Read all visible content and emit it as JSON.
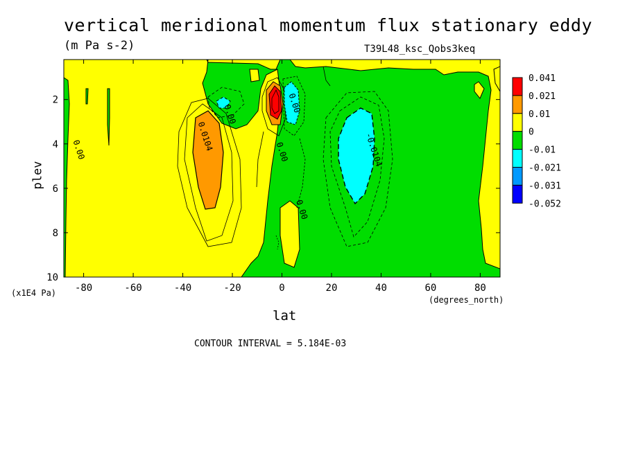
{
  "figure": {
    "title": "vertical meridional momentum flux stationary eddy",
    "subtitle": "(m Pa s-2)",
    "case_label": "T39L48_ksc_Qobs3keq",
    "y_unit_note": "(x1E4 Pa)",
    "x_unit_note": "(degrees_north)",
    "contour_interval": "CONTOUR INTERVAL = 5.184E-03"
  },
  "chart_data": {
    "type": "heatmap",
    "title": "vertical meridional momentum flux stationary eddy",
    "xlabel": "lat",
    "ylabel": "plev",
    "xlim": [
      -88,
      88
    ],
    "ylim": [
      10,
      0.2
    ],
    "y_inverted": true,
    "x_ticks": [
      -80,
      -60,
      -40,
      -20,
      0,
      20,
      40,
      60,
      80
    ],
    "y_ticks": [
      2,
      4,
      6,
      8,
      10
    ],
    "colorbar": {
      "levels": [
        "0.041",
        "0.021",
        "0.01",
        "0",
        "-0.01",
        "-0.021",
        "-0.031",
        "-0.052"
      ],
      "colors": [
        "#ff0000",
        "#ff9900",
        "#ffff00",
        "#00dd00",
        "#00ffff",
        "#0099ff",
        "#0000ff"
      ]
    },
    "background_color": "#ffff00",
    "features": [
      {
        "kind": "positive_max",
        "lat": -32,
        "plev": 4.8,
        "range": "0.01 to 0.021",
        "color": "#ff9900"
      },
      {
        "kind": "negative_min",
        "lat": 30,
        "plev": 4.2,
        "range": "-0.021 to -0.01",
        "color": "#00ffff"
      },
      {
        "kind": "positive_max",
        "lat": -2,
        "plev": 2.2,
        "range": "> 0.021",
        "color": "#ff0000"
      },
      {
        "kind": "negative_min",
        "lat": 4,
        "plev": 2.3,
        "range": "-0.021 to -0.01",
        "color": "#00ffff"
      }
    ],
    "contour_labels": [
      {
        "text": "0.00",
        "lat": -83,
        "plev": 4.3
      },
      {
        "text": "0.0104",
        "lat": -32,
        "plev": 3.7
      },
      {
        "text": "0.00",
        "lat": -22,
        "plev": 2.7
      },
      {
        "text": "0.00",
        "lat": -1,
        "plev": 4.4
      },
      {
        "text": "0.00",
        "lat": 7,
        "plev": 7.0
      },
      {
        "text": "0.00",
        "lat": 4,
        "plev": 2.2
      },
      {
        "text": "-0.0104",
        "lat": 36,
        "plev": 4.3
      }
    ]
  }
}
